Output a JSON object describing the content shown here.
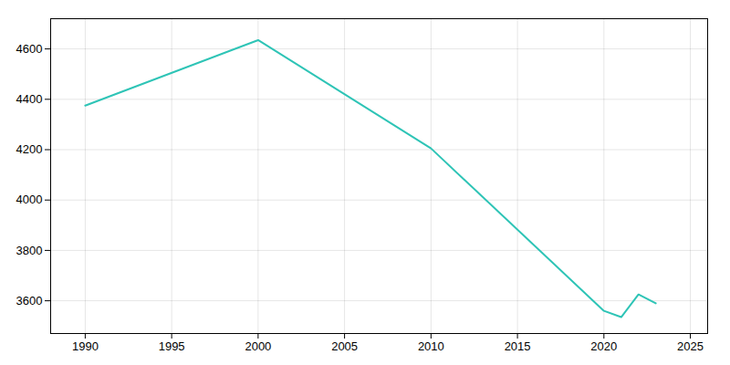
{
  "chart_data": {
    "type": "line",
    "x": [
      1990,
      2000,
      2010,
      2020,
      2021,
      2022,
      2023
    ],
    "values": [
      4375,
      4635,
      4205,
      3560,
      3535,
      3625,
      3590
    ],
    "color": "#2ec4b6",
    "xlim": [
      1988,
      2026
    ],
    "ylim": [
      3470,
      4720
    ],
    "xticks": [
      1990,
      1995,
      2000,
      2005,
      2010,
      2015,
      2020,
      2025
    ],
    "yticks": [
      3600,
      3800,
      4000,
      4200,
      4400,
      4600
    ],
    "grid": true
  }
}
